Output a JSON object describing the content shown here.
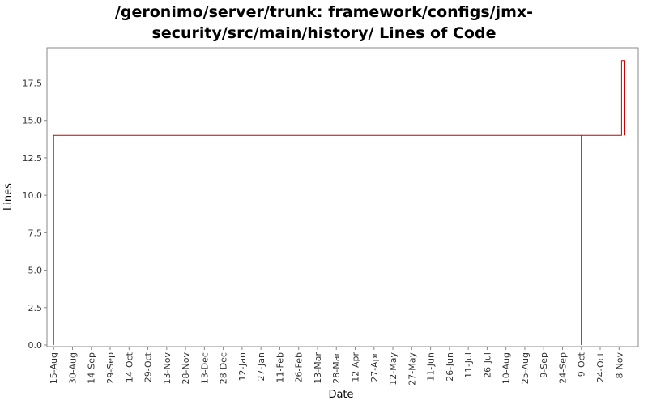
{
  "chart_data": {
    "type": "line",
    "title_lines": [
      "/geronimo/server/trunk: framework/configs/jmx-",
      "security/src/main/history/ Lines of Code"
    ],
    "xlabel": "Date",
    "ylabel": "Lines",
    "x_tick_labels": [
      "15-Aug",
      "30-Aug",
      "14-Sep",
      "29-Sep",
      "14-Oct",
      "29-Oct",
      "13-Nov",
      "28-Nov",
      "13-Dec",
      "28-Dec",
      "12-Jan",
      "27-Jan",
      "11-Feb",
      "26-Feb",
      "13-Mar",
      "28-Mar",
      "12-Apr",
      "27-Apr",
      "12-May",
      "27-May",
      "11-Jun",
      "26-Jun",
      "11-Jul",
      "26-Jul",
      "10-Aug",
      "25-Aug",
      "9-Sep",
      "24-Sep",
      "9-Oct",
      "24-Oct",
      "8-Nov"
    ],
    "y_ticks": [
      0.0,
      2.5,
      5.0,
      7.5,
      10.0,
      12.5,
      15.0,
      17.5
    ],
    "y_tick_labels": [
      "0.0",
      "2.5",
      "5.0",
      "7.5",
      "10.0",
      "12.5",
      "15.0",
      "17.5"
    ],
    "ylim": [
      0,
      19.8
    ],
    "x_axis_unit": "days since first tick (15-Aug)",
    "x_range": [
      -4,
      464
    ],
    "tick_spacing_days": 15,
    "line_color": "#cc0000",
    "series": [
      {
        "name": "Lines",
        "points": [
          [
            0,
            0
          ],
          [
            0,
            14
          ],
          [
            420,
            14
          ],
          [
            420,
            0
          ],
          [
            420,
            14
          ],
          [
            452,
            14
          ],
          [
            452,
            19
          ],
          [
            454,
            19
          ],
          [
            454,
            14
          ]
        ]
      }
    ],
    "grid": false
  }
}
